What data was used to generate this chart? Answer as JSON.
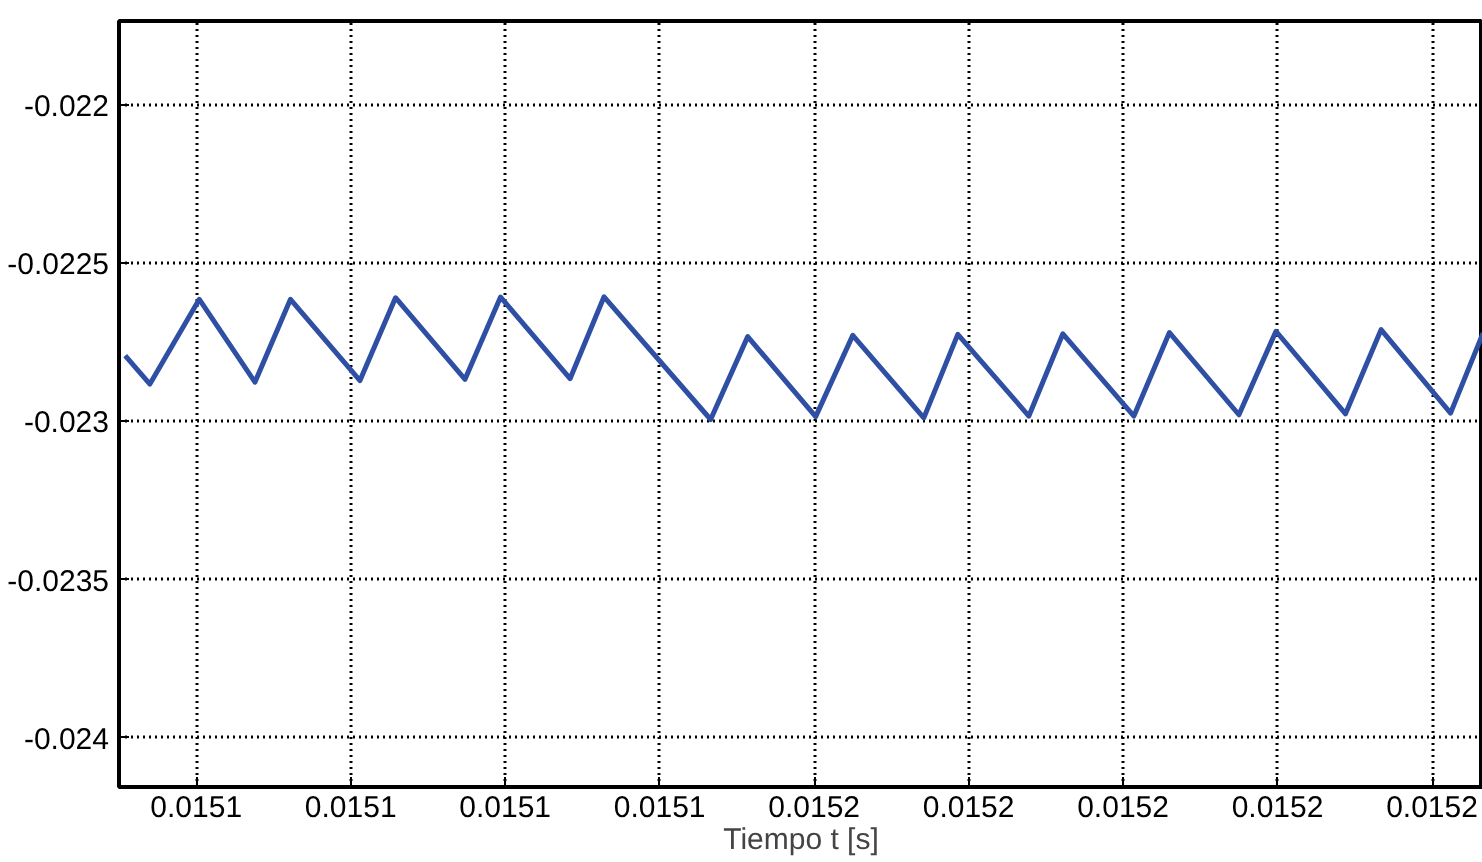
{
  "chart_data": {
    "type": "line",
    "xlabel": "Tiempo t [s]",
    "series": [
      {
        "color": "#2e4fa3",
        "x": [
          0.0151054,
          0.015107,
          0.0151102,
          0.0151138,
          0.0151161,
          0.0151206,
          0.0151229,
          0.0151274,
          0.0151297,
          0.0151342,
          0.0151364,
          0.0151433,
          0.0151457,
          0.0151501,
          0.0151525,
          0.0151571,
          0.0151593,
          0.0151639,
          0.0151661,
          0.0151707,
          0.015173,
          0.0151775,
          0.0151799,
          0.0151844,
          0.0151867,
          0.0151912,
          0.0151933
        ],
        "values": [
          -0.022792,
          -0.022882,
          -0.022614,
          -0.022876,
          -0.022614,
          -0.022871,
          -0.022609,
          -0.022867,
          -0.022607,
          -0.022865,
          -0.022606,
          -0.022994,
          -0.022732,
          -0.022985,
          -0.022728,
          -0.022989,
          -0.022725,
          -0.022983,
          -0.022723,
          -0.022983,
          -0.022719,
          -0.022979,
          -0.022715,
          -0.022976,
          -0.02271,
          -0.022974,
          -0.022721
        ]
      }
    ],
    "xlim": [
      0.015105,
      0.0151933
    ],
    "ylim": [
      -0.024156,
      -0.021734
    ],
    "xticks": [
      {
        "value": 0.01511,
        "label": "0.0151"
      },
      {
        "value": 0.01512,
        "label": "0.0151"
      },
      {
        "value": 0.01513,
        "label": "0.0151"
      },
      {
        "value": 0.01514,
        "label": "0.0151"
      },
      {
        "value": 0.01515,
        "label": "0.0152"
      },
      {
        "value": 0.01516,
        "label": "0.0152"
      },
      {
        "value": 0.01517,
        "label": "0.0152"
      },
      {
        "value": 0.01518,
        "label": "0.0152"
      },
      {
        "value": 0.01519,
        "label": "0.0152"
      }
    ],
    "yticks": [
      -0.024,
      -0.0235,
      -0.023,
      -0.0225,
      -0.022
    ],
    "grid": true,
    "line_style": "solid"
  }
}
